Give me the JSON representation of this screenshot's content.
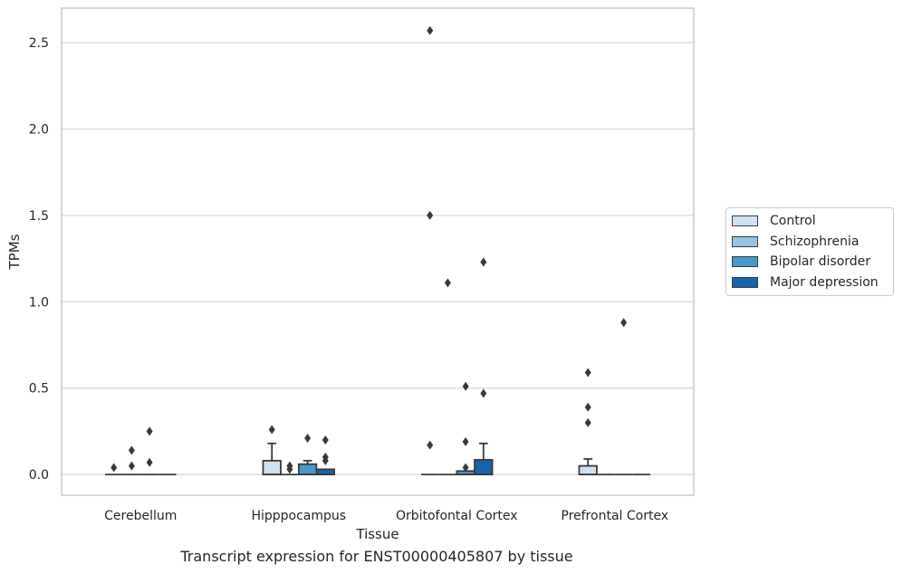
{
  "chart_data": {
    "type": "box",
    "title": "",
    "caption": "Transcript expression for ENST00000405807 by tissue",
    "xlabel": "Tissue",
    "ylabel": "TPMs",
    "ylim": [
      -0.12,
      2.7
    ],
    "yticks": [
      0.0,
      0.5,
      1.0,
      1.5,
      2.0,
      2.5
    ],
    "ytick_labels": [
      "0.0",
      "0.5",
      "1.0",
      "1.5",
      "2.0",
      "2.5"
    ],
    "grid": "horizontal",
    "legend_position": "right",
    "categories": [
      "Cerebellum",
      "Hipppocampus",
      "Orbitofontal Cortex",
      "Prefrontal Cortex"
    ],
    "series": [
      {
        "name": "Control",
        "color": "#d0e1f2",
        "boxes": [
          {
            "q1": 0.0,
            "median": 0.0,
            "q3": 0.0,
            "whisker_low": 0.0,
            "whisker_high": 0.0,
            "outliers": [
              0.04
            ]
          },
          {
            "q1": 0.0,
            "median": 0.0,
            "q3": 0.08,
            "whisker_low": 0.0,
            "whisker_high": 0.18,
            "outliers": [
              0.26
            ]
          },
          {
            "q1": 0.0,
            "median": 0.0,
            "q3": 0.0,
            "whisker_low": 0.0,
            "whisker_high": 0.0,
            "outliers": [
              2.57,
              1.5,
              0.17
            ]
          },
          {
            "q1": 0.0,
            "median": 0.0,
            "q3": 0.05,
            "whisker_low": 0.0,
            "whisker_high": 0.09,
            "outliers": [
              0.59,
              0.39,
              0.3
            ]
          }
        ]
      },
      {
        "name": "Schizophrenia",
        "color": "#94c4df",
        "boxes": [
          {
            "q1": 0.0,
            "median": 0.0,
            "q3": 0.0,
            "whisker_low": 0.0,
            "whisker_high": 0.0,
            "outliers": [
              0.14,
              0.05
            ]
          },
          {
            "q1": 0.0,
            "median": 0.0,
            "q3": 0.0,
            "whisker_low": 0.0,
            "whisker_high": 0.0,
            "outliers": [
              0.05,
              0.03
            ]
          },
          {
            "q1": 0.0,
            "median": 0.0,
            "q3": 0.0,
            "whisker_low": 0.0,
            "whisker_high": 0.0,
            "outliers": [
              1.11
            ]
          },
          {
            "q1": 0.0,
            "median": 0.0,
            "q3": 0.0,
            "whisker_low": 0.0,
            "whisker_high": 0.0,
            "outliers": []
          }
        ]
      },
      {
        "name": "Bipolar disorder",
        "color": "#4a98c9",
        "boxes": [
          {
            "q1": 0.0,
            "median": 0.0,
            "q3": 0.0,
            "whisker_low": 0.0,
            "whisker_high": 0.0,
            "outliers": [
              0.25,
              0.07
            ]
          },
          {
            "q1": 0.0,
            "median": 0.0,
            "q3": 0.06,
            "whisker_low": 0.0,
            "whisker_high": 0.08,
            "outliers": [
              0.21
            ]
          },
          {
            "q1": 0.0,
            "median": 0.0,
            "q3": 0.02,
            "whisker_low": 0.0,
            "whisker_high": 0.02,
            "outliers": [
              0.51,
              0.19,
              0.04
            ]
          },
          {
            "q1": 0.0,
            "median": 0.0,
            "q3": 0.0,
            "whisker_low": 0.0,
            "whisker_high": 0.0,
            "outliers": [
              0.88
            ]
          }
        ]
      },
      {
        "name": "Major depression",
        "color": "#1764ab",
        "boxes": [
          {
            "q1": 0.0,
            "median": 0.0,
            "q3": 0.0,
            "whisker_low": 0.0,
            "whisker_high": 0.0,
            "outliers": []
          },
          {
            "q1": 0.0,
            "median": 0.0,
            "q3": 0.03,
            "whisker_low": 0.0,
            "whisker_high": 0.03,
            "outliers": [
              0.2,
              0.1,
              0.08
            ]
          },
          {
            "q1": 0.0,
            "median": 0.0,
            "q3": 0.085,
            "whisker_low": 0.0,
            "whisker_high": 0.18,
            "outliers": [
              1.23,
              0.47
            ]
          },
          {
            "q1": 0.0,
            "median": 0.0,
            "q3": 0.0,
            "whisker_low": 0.0,
            "whisker_high": 0.0,
            "outliers": []
          }
        ]
      }
    ]
  }
}
